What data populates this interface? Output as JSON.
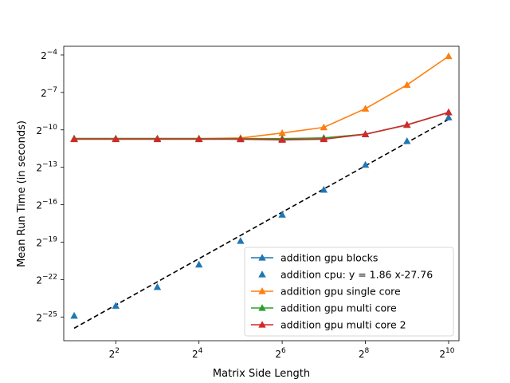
{
  "chart_data": {
    "type": "line",
    "xlabel": "Matrix Side Length",
    "ylabel": "Mean Run Time (in seconds)",
    "x_scale": "log2",
    "y_scale": "log2",
    "xlim_log2": [
      0.75,
      10.25
    ],
    "ylim_log2": [
      -26.9,
      -3.3
    ],
    "x_ticks": [
      {
        "log2": 2,
        "base": "2",
        "exp": "2"
      },
      {
        "log2": 4,
        "base": "2",
        "exp": "4"
      },
      {
        "log2": 6,
        "base": "2",
        "exp": "6"
      },
      {
        "log2": 8,
        "base": "2",
        "exp": "8"
      },
      {
        "log2": 10,
        "base": "2",
        "exp": "10"
      }
    ],
    "y_ticks": [
      {
        "log2": -4,
        "base": "2",
        "exp": "−4"
      },
      {
        "log2": -7,
        "base": "2",
        "exp": "−7"
      },
      {
        "log2": -10,
        "base": "2",
        "exp": "−10"
      },
      {
        "log2": -13,
        "base": "2",
        "exp": "−13"
      },
      {
        "log2": -16,
        "base": "2",
        "exp": "−16"
      },
      {
        "log2": -19,
        "base": "2",
        "exp": "−19"
      },
      {
        "log2": -22,
        "base": "2",
        "exp": "−22"
      },
      {
        "log2": -25,
        "base": "2",
        "exp": "−25"
      }
    ],
    "x": [
      2,
      4,
      8,
      16,
      32,
      64,
      128,
      256,
      512,
      1024
    ],
    "series": [
      {
        "name": "addition gpu blocks",
        "color": "#1f77b4",
        "style": "line-marker",
        "log2_y": [
          -10.7,
          -10.7,
          -10.7,
          -10.7,
          -10.75,
          -10.75,
          -10.65,
          -10.35,
          -9.6,
          -8.6
        ]
      },
      {
        "name": "addition cpu: y = 1.86 x-27.76",
        "color": "#1f77b4",
        "style": "marker-only",
        "log2_y": [
          -24.9,
          -24.1,
          -22.6,
          -20.8,
          -18.9,
          -16.8,
          -14.8,
          -12.8,
          -10.9,
          -9.0
        ],
        "fit": {
          "slope": 1.86,
          "intercept": -27.76,
          "color": "#000000",
          "dash": "dashed"
        }
      },
      {
        "name": "addition gpu single core",
        "color": "#ff7f0e",
        "style": "line-marker",
        "log2_y": [
          -10.7,
          -10.7,
          -10.7,
          -10.7,
          -10.65,
          -10.25,
          -9.8,
          -8.3,
          -6.4,
          -4.1
        ]
      },
      {
        "name": "addition gpu multi core",
        "color": "#2ca02c",
        "style": "line-marker",
        "log2_y": [
          -10.7,
          -10.7,
          -10.7,
          -10.7,
          -10.7,
          -10.7,
          -10.65,
          -10.35,
          -9.6,
          -8.6
        ]
      },
      {
        "name": "addition gpu multi core 2",
        "color": "#d62728",
        "style": "line-marker",
        "log2_y": [
          -10.75,
          -10.75,
          -10.75,
          -10.75,
          -10.75,
          -10.8,
          -10.75,
          -10.35,
          -9.6,
          -8.6
        ]
      }
    ],
    "legend_position": "lower-right",
    "grid": false
  }
}
